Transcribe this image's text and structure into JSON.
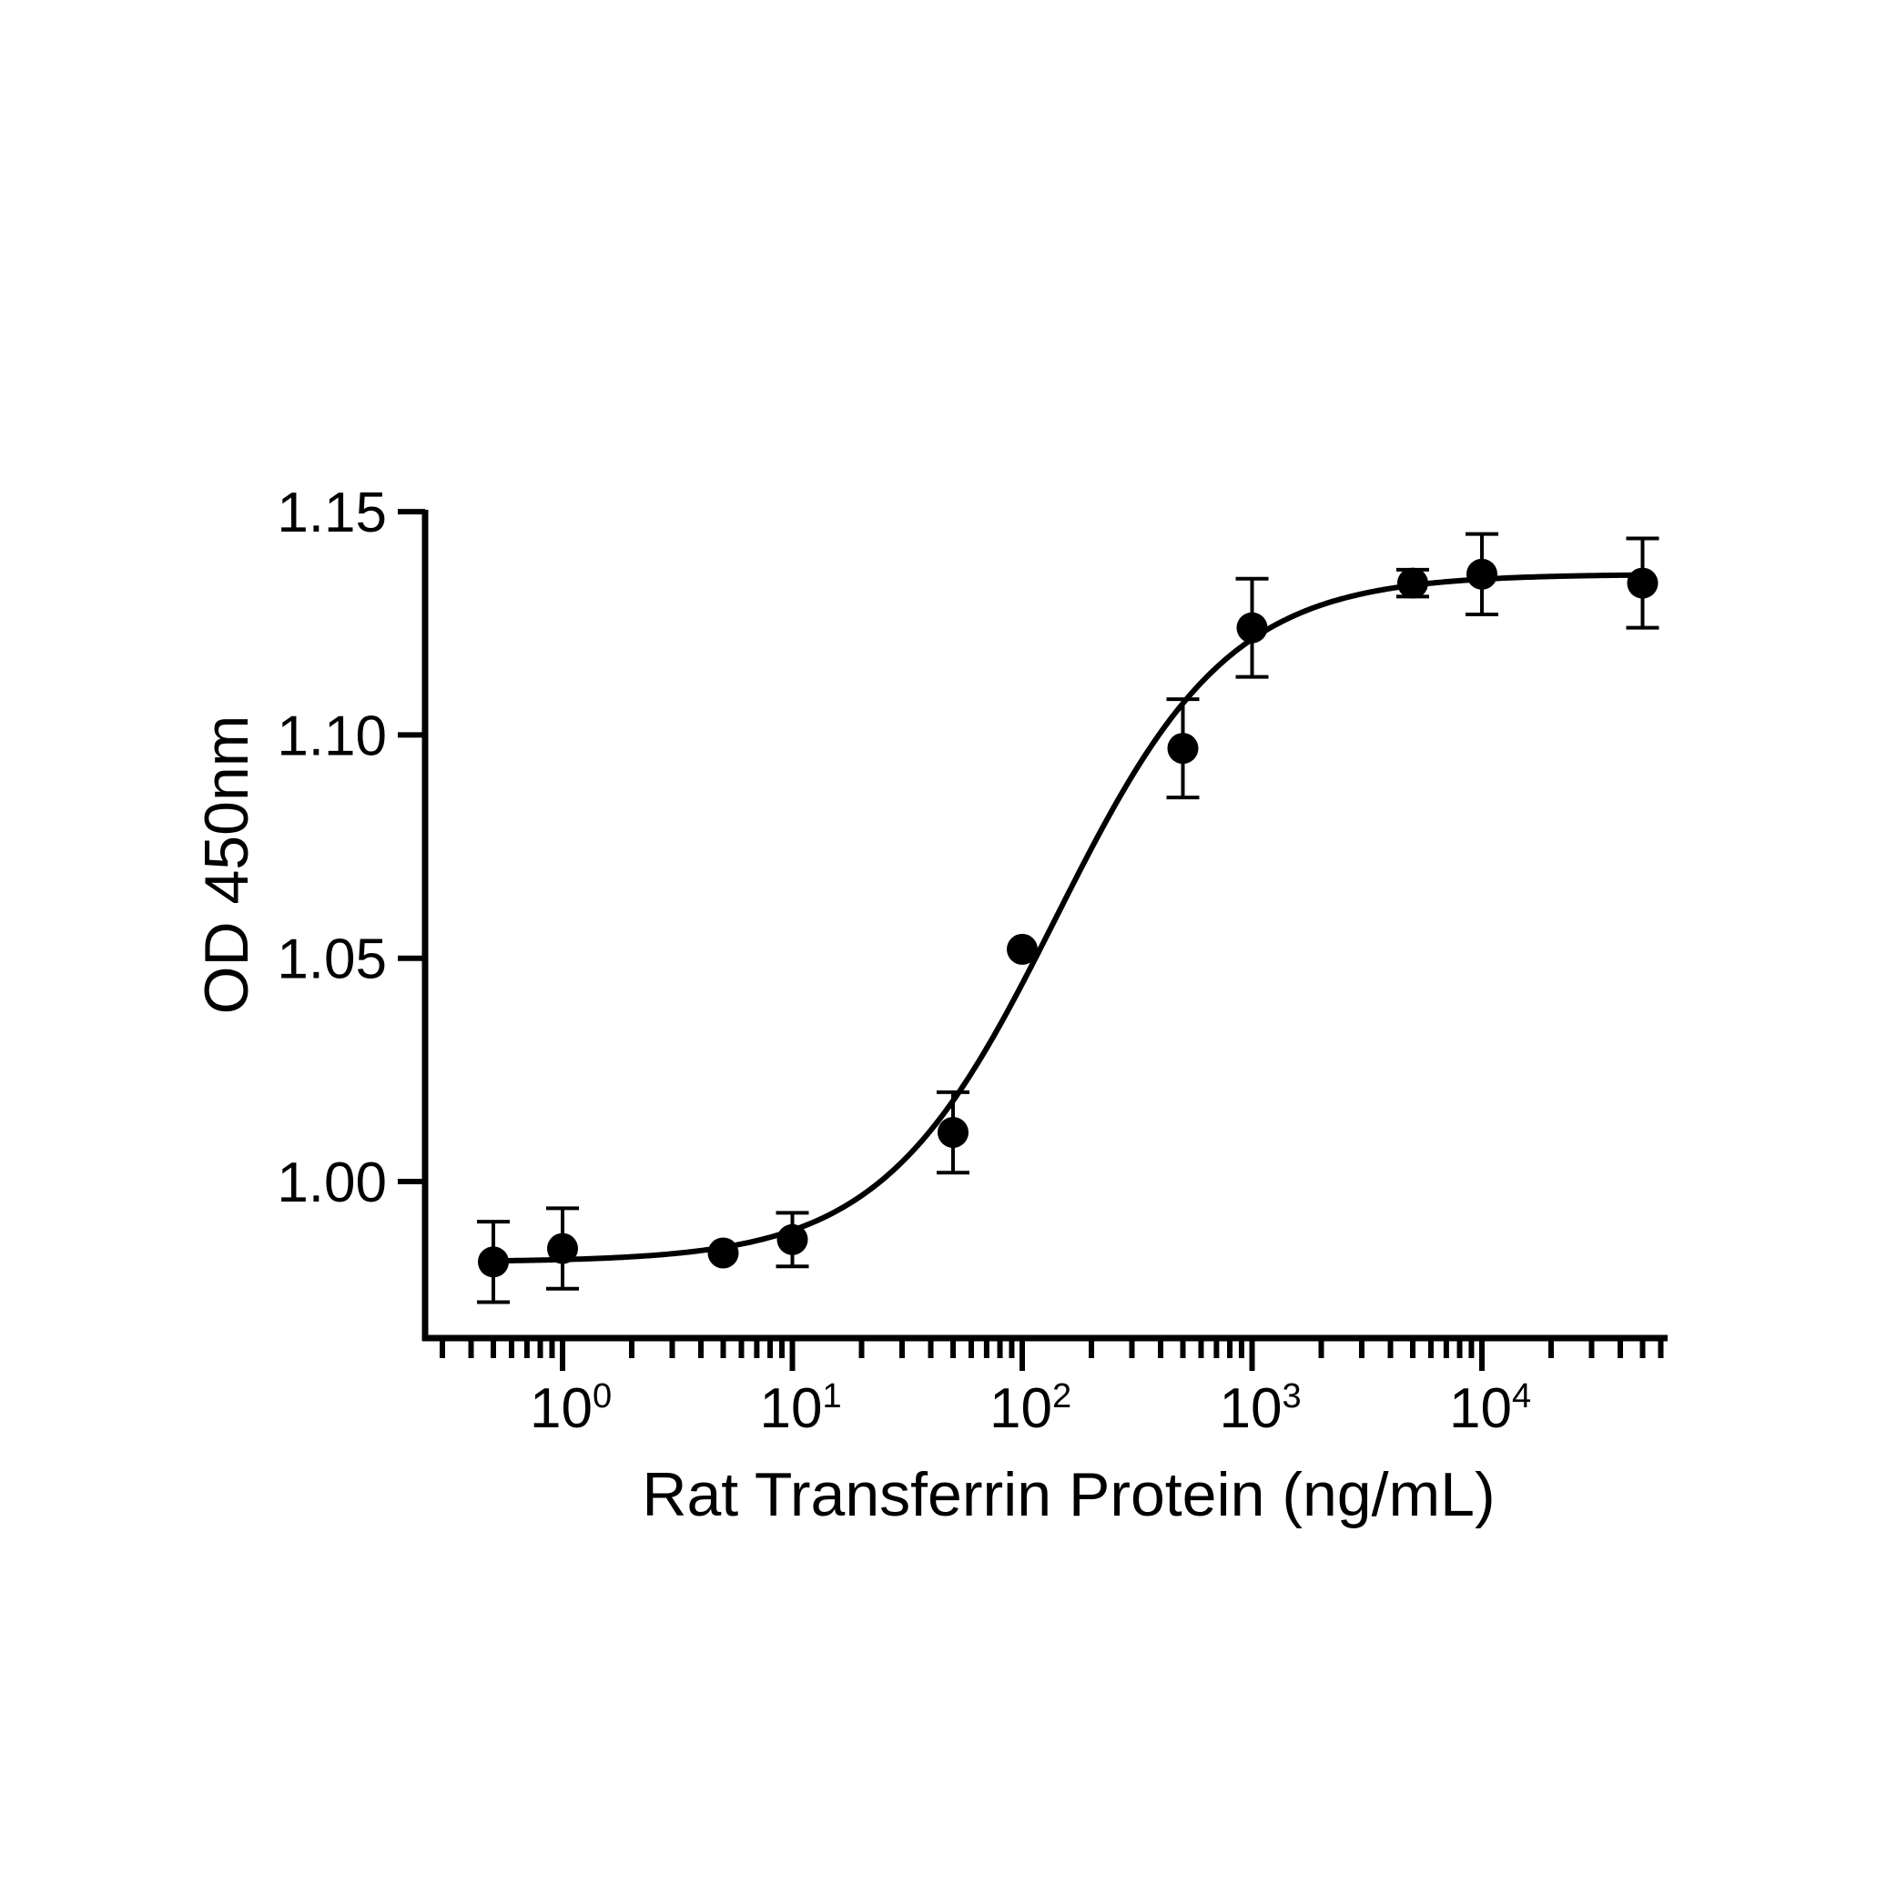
{
  "chart_data": {
    "type": "scatter",
    "xlabel": "Rat Transferrin Protein (ng/mL)",
    "ylabel": "OD 450nm",
    "xscale": "log",
    "xlim": [
      0.3,
      70000
    ],
    "ylim": [
      0.965,
      1.15
    ],
    "grid": false,
    "y_ticks": [
      1.0,
      1.05,
      1.1,
      1.15
    ],
    "y_tick_labels": [
      "1.00",
      "1.05",
      "1.10",
      "1.15"
    ],
    "x_ticks": [
      1,
      10,
      100,
      1000,
      10000
    ],
    "x_tick_labels": [
      {
        "base": "10",
        "exp": "0"
      },
      {
        "base": "10",
        "exp": "1"
      },
      {
        "base": "10",
        "exp": "2"
      },
      {
        "base": "10",
        "exp": "3"
      },
      {
        "base": "10",
        "exp": "4"
      }
    ],
    "series": [
      {
        "points": [
          {
            "x": 0.5,
            "y": 0.982,
            "err": 0.009
          },
          {
            "x": 1,
            "y": 0.985,
            "err": 0.009
          },
          {
            "x": 5,
            "y": 0.984,
            "err": 0
          },
          {
            "x": 10,
            "y": 0.987,
            "err": 0.006
          },
          {
            "x": 50,
            "y": 1.011,
            "err": 0.009
          },
          {
            "x": 100,
            "y": 1.052,
            "err": 0
          },
          {
            "x": 500,
            "y": 1.097,
            "err": 0.011
          },
          {
            "x": 1000,
            "y": 1.124,
            "err": 0.011
          },
          {
            "x": 5000,
            "y": 1.134,
            "err": 0.003
          },
          {
            "x": 10000,
            "y": 1.136,
            "err": 0.009
          },
          {
            "x": 50000,
            "y": 1.134,
            "err": 0.01
          }
        ]
      }
    ],
    "fit": {
      "model": "4PL",
      "bottom": 0.982,
      "top": 1.136,
      "ec50": 140,
      "hill": 1.15
    },
    "colors": {
      "marker": "#000000",
      "line": "#000000",
      "axis": "#000000"
    }
  }
}
